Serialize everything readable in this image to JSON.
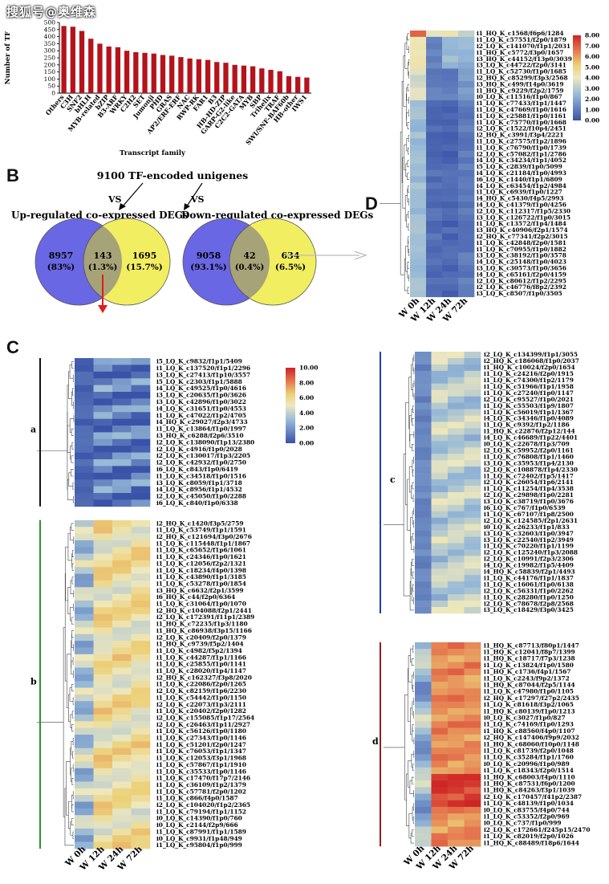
{
  "watermark": "搜狐号@奥维森",
  "panel_labels": {
    "B": "B",
    "C": "C",
    "D": "D"
  },
  "chart_data": [
    {
      "type": "bar",
      "ylabel": "Number of TF",
      "xlabel": "Transcript family",
      "ylim": [
        0,
        500
      ],
      "yticks": [
        0,
        50,
        100,
        150,
        200,
        250,
        300,
        350,
        400,
        450,
        500
      ],
      "categories": [
        "Others",
        "C3H",
        "SNF2",
        "bHLH",
        "MYB-related",
        "bZIP",
        "B3-ARF",
        "WRKY",
        "C2H2",
        "SET",
        "Jumonji",
        "PHD",
        "GRAS",
        "AP2/ERF-ERF",
        "NAC",
        "RWP-RK",
        "FAR1",
        "B3",
        "HB-HD-ZIP",
        "GARP-G2-like",
        "C2C2-GATA",
        "MYB",
        "SBP",
        "Trihelix",
        "TRAF",
        "SWI/SNF-BAF60b",
        "HB-other",
        "IWS1"
      ],
      "values": [
        475,
        470,
        440,
        385,
        350,
        330,
        325,
        300,
        290,
        285,
        280,
        270,
        265,
        255,
        245,
        240,
        235,
        220,
        215,
        200,
        195,
        190,
        175,
        165,
        155,
        120,
        115,
        110
      ],
      "color": "#b5131b"
    }
  ],
  "venn": {
    "header": "9100 TF-encoded unigenes",
    "vs": "VS",
    "left_title": "Up-regulated co-expressed DEGs",
    "right_title": "Down-regulated co-expressed DEGs",
    "left": {
      "a": "8957",
      "a_pct": "(83%)",
      "ab": "143",
      "ab_pct": "(1.3%)",
      "b": "1695",
      "b_pct": "(15.7%)"
    },
    "right": {
      "a": "9058",
      "a_pct": "(93.1%)",
      "ab": "42",
      "ab_pct": "(0.4%)",
      "b": "634",
      "b_pct": "(6.5%)"
    },
    "colors": {
      "blue": "#6a67e4",
      "yellow": "#f2ee62",
      "overlap": "#a7a378"
    }
  },
  "heatmaps": {
    "columns": [
      "W 0h",
      "W 12h",
      "W 24h",
      "W 72h"
    ],
    "scale": {
      "min": "0.00",
      "ticks": [
        "0.00",
        "1.00",
        "2.00",
        "3.00",
        "4.00",
        "5.00",
        "6.00",
        "7.00",
        "8.00"
      ]
    },
    "scale_c": {
      "ticks": [
        "0.00",
        "2.00",
        "4.00",
        "6.00",
        "8.00",
        "10.00"
      ]
    },
    "cluster_labels": {
      "a": "a",
      "b": "b",
      "c": "c",
      "d": "d"
    },
    "D_rows": [
      "i1_HQ_K_c1568/f6p6/1284",
      "i1_LQ_K_c57551/f2p0/1879",
      "i2_LQ_K_c141070/f1p1/2031",
      "i1_HQ_K_c5772/f3p0/1657",
      "i3_HQ_K_c44152/f13p0/3039",
      "i3_LQ_K_c44722/f2p0/3141",
      "i1_LQ_K_c52730/f1p0/1685",
      "i2_HQ_K_c85299/f3p3/2568",
      "i3_HQ_K_c499/f14p0/3619",
      "i1_HQ_K_c9229/f2p2/1759",
      "i0_LQ_K_c11516/f1p0/867",
      "i1_LQ_K_c77433/f1p1/1447",
      "i1_LQ_K_c47669/f1p0/1616",
      "i1_LQ_K_c25881/f1p0/1161",
      "i1_LQ_K_c75770/f1p0/1668",
      "i2_LQ_K_c1522/f10p4/2451",
      "i2_HQ_K_c3991/f3p4/2221",
      "i1_LQ_K_c27575/f1p2/1896",
      "i1_LQ_K_c76790/f1p0/1739",
      "i2_LQ_K_c57082/f1p1/2786",
      "i4_LQ_K_c34234/f1p1/4052",
      "i5_LQ_K_c2839/f1p0/5099",
      "i4_LQ_K_c21184/f1p0/4993",
      "i6_LQ_K_c1440/f1p1/6809",
      "i4_LQ_K_c63454/f1p2/4984",
      "i1_LQ_K_c6939/f1p0/1227",
      "i4_HQ_K_c5430/f4p5/2993",
      "i4_LQ_K_c41379/f1p0/4256",
      "i2_LQ_K_c112317/f1p5/2330",
      "i3_LQ_K_c126722/f1p0/3015",
      "i1_LQ_K_c13572/f1p4/1484",
      "i3_HQ_K_c40906/f2p1/1574",
      "i2_HQ_K_c77341/f2p2/3015",
      "i1_LQ_K_c42848/f2p0/1581",
      "i1_LQ_K_c70955/f1p0/1882",
      "i3_LQ_K_c38192/f1p0/3578",
      "i4_LQ_K_c25148/f1p0/4023",
      "i3_LQ_K_c30573/f1p0/3656",
      "i4_LQ_K_c65161/f2p0/4159",
      "i2_LQ_K_c80612/f1p2/2295",
      "i2_LQ_K_c46776/f8p2/2392",
      "i3_LQ_K_c8507/f1p0/3505"
    ],
    "a_rows": [
      "i5_LQ_K_c9832/f1p1/5409",
      "i1_LQ_K_c137520/f1p1/2296",
      "i3_LQ_K_c27413/f1p10/3557",
      "i5_LQ_K_c2303/f1p1/5888",
      "i4_LQ_K_c49525/f1p0/4616",
      "i3_LQ_K_c20635/f1p0/3626",
      "i3_LQ_K_c42896/f1p0/3022",
      "i4_LQ_K_c31651/f1p0/4553",
      "i1_LQ_K_c47022/f1p2/4705",
      "i4_HQ_K_c29027/f2p3/4733",
      "i1_LQ_K_c13864/f1p0/1997",
      "i3_HQ_K_c6288/f2p6/3510",
      "i2_LQ_K_c138090/f1p13/2380",
      "i2_LQ_K_c4916/f1p0/2028",
      "i2_LQ_K_c130017/f1p3/2205",
      "i2_LQ_K_c42932/f1p0/2750",
      "i6_LQ_K_c843/f1p0/6419",
      "i1_LQ_K_c34518/f1p0/1516",
      "i3_LQ_K_c8059/f1p1/3718",
      "i4_LQ_K_c8956/f1p1/4532",
      "i2_LQ_K_c45050/f1p0/2288",
      "i6_LQ_K_c840/f1p0/6338"
    ],
    "b_rows": [
      "i2_HQ_K_c1420/f3p5/2759",
      "i1_LQ_K_c53749/f1p1/1591",
      "i2_HQ_K_c121694/f3p0/2676",
      "i1_LQ_K_c115448/f1p1/1867",
      "i1_LQ_K_c65652/f1p6/1061",
      "i1_LQ_K_c24346/f1p0/1621",
      "i1_LQ_K_c12056/f2p2/1321",
      "i1_LQ_K_c18234/f4p0/1398",
      "i1_LQ_K_c43890/f1p1/3185",
      "i1_LQ_K_c53278/f1p0/1854",
      "i3_HQ_K_c6632/f2p1/3599",
      "i6_HQ_K_c44/f2p0/6364",
      "i1_LQ_K_c31064/f1p0/1070",
      "i2_HQ_K_c104088/f2p1/2441",
      "i2_LQ_K_c172391/f11p1/2389",
      "i1_HQ_K_c72235/f1p3/1180",
      "i1_HQ_K_c86938/f3p15/1166",
      "i2_LQ_K_c20409/f2p0/1379",
      "i1_HQ_K_c9739/f5p2/1404",
      "i1_LQ_K_c4982/f5p2/1394",
      "i1_LQ_K_c44287/f1p1/1166",
      "i1_LQ_K_c25855/f1p0/1141",
      "i1_LQ_K_c28020/f1p4/1147",
      "i2_HQ_K_c162327/f3p8/2020",
      "i1_LQ_K_c22086/f2p0/1265",
      "i2_LQ_K_c82159/f1p6/2230",
      "i1_LQ_K_c54442/f1p0/1150",
      "i2_LQ_K_c22073/f1p3/2111",
      "i1_LQ_K_c20402/f2p0/1282",
      "i2_LQ_K_c155085/f1p17/2564",
      "i2_LQ_K_c26463/f1p11/2927",
      "i1_LQ_K_c56126/f1p0/1180",
      "i1_LQ_K_c27343/f1p0/1146",
      "i1_LQ_K_c51201/f2p0/1247",
      "i1_LQ_K_c76053/f1p1/1347",
      "i1_LQ_K_c12053/f3p1/1968",
      "i1_LQ_K_c57867/f1p1/1910",
      "i1_LQ_K_c35533/f1p0/1146",
      "i1_LQ_K_c17470/f17p7/2146",
      "i1_LQ_K_c36109/f1p2/1379",
      "i1_LQ_K_c57781/f2p0/1202",
      "i1_LQ_K_c866/f4p0/1587",
      "i2_LQ_K_c104020/f1p2/2365",
      "i1_LQ_K_c79194/f1p1/1152",
      "i0_LQ_K_c14390/f1p0/760",
      "i0_LQ_K_c2144/f2p9/666",
      "i1_LQ_K_c87991/f1p1/1589",
      "i0_LQ_K_c9931/f1p48/949",
      "i1_LQ_K_c95804/f1p0/999"
    ],
    "c_rows": [
      "i2_LQ_K_c134399/f1p1/3055",
      "i2_HQ_K_c186068/f1p0/2037",
      "i1_HQ_K_c10024/f2p0/1654",
      "i1_LQ_K_c24216/f2p0/1915",
      "i1_LQ_K_c74300/f1p2/1179",
      "i1_LQ_K_c51966/f1p1/1958",
      "i1_LQ_K_c27240/f1p0/1147",
      "i2_LQ_K_c95527/f1p0/2021",
      "i1_LQ_K_c55503/f1p9/1807",
      "i1_LQ_K_c56019/f1p1/1367",
      "i4_LQ_K_c34346/f1p0/4089",
      "i1_LQ_K_c9392/f1p2/1186",
      "i1_HQ_K_c22876/f2p12/144",
      "i4_LQ_K_c46689/f1p22/4401",
      "i0_LQ_K_c22678/f1p3/709",
      "i2_LQ_K_c59952/f2p0/1161",
      "i1_LQ_K_c76808/f1p1/1460",
      "i3_LQ_K_c35953/f1p4/2130",
      "i2_LQ_K_c108878/f1p4/2330",
      "i1_LQ_K_c72402/f1p5/1417",
      "i2_LQ_K_c26054/f1p6/2141",
      "i1_LQ_K_c11254/f1p4/3538",
      "i2_LQ_K_c29898/f1p0/2281",
      "i3_LQ_K_c38719/f1p0/3676",
      "i6_LQ_K_c767/f1p0/6539",
      "i1_LQ_K_c67107/f1p8/2500",
      "i2_LQ_K_c124585/f2p1/2631",
      "i0_LQ_K_c26233/f1p1/833",
      "i3_LQ_K_c32603/f1p0/3947",
      "i3_LQ_K_c22540/f1p2/3949",
      "i1_LQ_K_c70220/f1p1/1199",
      "i2_LQ_K_c125240/f1p3/2088",
      "i2_LQ_K_c10991/f2p3/2306",
      "i4_LQ_K_c19982/f1p5/4409",
      "i4_HQ_K_c58839/f2p1/4493",
      "i1_LQ_K_c44176/f1p1/1837",
      "i1_LQ_K_c16061/f1p0/6138",
      "i2_LQ_K_c56331/f1p0/2262",
      "i1_LQ_K_c28280/f1p0/1250",
      "i2_LQ_K_c78678/f2p8/2568",
      "i3_LQ_K_c18429/f3p0/3425"
    ],
    "d_rows": [
      "i1_HQ_K_c87713/f80p1/1447",
      "i1_HQ_K_c12041/f8p7/1399",
      "i1_HQ_K_c18717/f7p3/1238",
      "i1_LQ_K_c13824/f1p0/1580",
      "i1_HQ_K_c1736/f4p1/1567",
      "i1_LQ_K_c2243/f9p2/1372",
      "i1_HQ_K_c87044/f2p5/1144",
      "i1_LQ_K_c47980/f1p0/1105",
      "i2_HQ_K_c17297/f27p2/2435",
      "i1_LQ_K_c81618/f3p2/1065",
      "i1_HQ_K_c80139/f1p0/1213",
      "i0_LQ_K_c3027/f1p0/827",
      "i1_LQ_K_c74169/f1p0/1293",
      "i1_HQ_K_c88560/f4p0/1107",
      "i2_HQ_K_c147406/f9p9/2032",
      "i1_HQ_K_c68060/f10p0/1148",
      "i1_LQ_K_c81739/f2p0/1048",
      "i1_LQ_K_c35284/f1p1/1760",
      "i0_LQ_K_c20996/f1p0/989",
      "i1_LQ_K_c18343/f2p0/1514",
      "i1_HQ_K_c68003/f4p0/1110",
      "i1_HQ_K_c87531/f6p0/1200",
      "i1_HQ_K_c84263/f3p1/1039",
      "i2_LQ_K_c170457/f41p2/2387",
      "i1_LQ_K_c48139/f1p0/1034",
      "i0_LQ_K_c83755/f4p0/744",
      "i1_LQ_K_c53352/f2p0/969",
      "i0_LQ_K_c737/f1p0/999",
      "i2_LQ_K_c172661/f245p15/2470",
      "i1_LQ_K_c82019/f2p0/1026",
      "i1_HQ_K_c88489/f18p6/1644"
    ]
  }
}
